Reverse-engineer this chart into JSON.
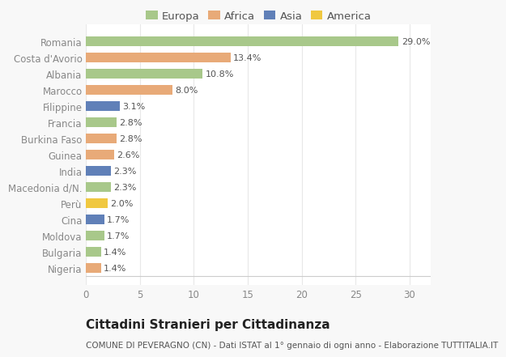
{
  "categories": [
    "Romania",
    "Costa d'Avorio",
    "Albania",
    "Marocco",
    "Filippine",
    "Francia",
    "Burkina Faso",
    "Guinea",
    "India",
    "Macedonia d/N.",
    "Perù",
    "Cina",
    "Moldova",
    "Bulgaria",
    "Nigeria"
  ],
  "values": [
    29.0,
    13.4,
    10.8,
    8.0,
    3.1,
    2.8,
    2.8,
    2.6,
    2.3,
    2.3,
    2.0,
    1.7,
    1.7,
    1.4,
    1.4
  ],
  "continents": [
    "Europa",
    "Africa",
    "Europa",
    "Africa",
    "Asia",
    "Europa",
    "Africa",
    "Africa",
    "Asia",
    "Europa",
    "America",
    "Asia",
    "Europa",
    "Europa",
    "Africa"
  ],
  "continent_colors": {
    "Europa": "#a8c88a",
    "Africa": "#e8aa78",
    "Asia": "#6080b8",
    "America": "#f0c840"
  },
  "legend_order": [
    "Europa",
    "Africa",
    "Asia",
    "America"
  ],
  "title": "Cittadini Stranieri per Cittadinanza",
  "subtitle": "COMUNE DI PEVERAGNO (CN) - Dati ISTAT al 1° gennaio di ogni anno - Elaborazione TUTTITALIA.IT",
  "xlim": [
    0,
    32
  ],
  "xticks": [
    0,
    5,
    10,
    15,
    20,
    25,
    30
  ],
  "background_color": "#f8f8f8",
  "bar_background": "#ffffff",
  "grid_color": "#e8e8e8",
  "title_fontsize": 11,
  "subtitle_fontsize": 7.5,
  "label_fontsize": 8.5,
  "tick_fontsize": 8.5,
  "value_fontsize": 8.0,
  "legend_fontsize": 9.5
}
